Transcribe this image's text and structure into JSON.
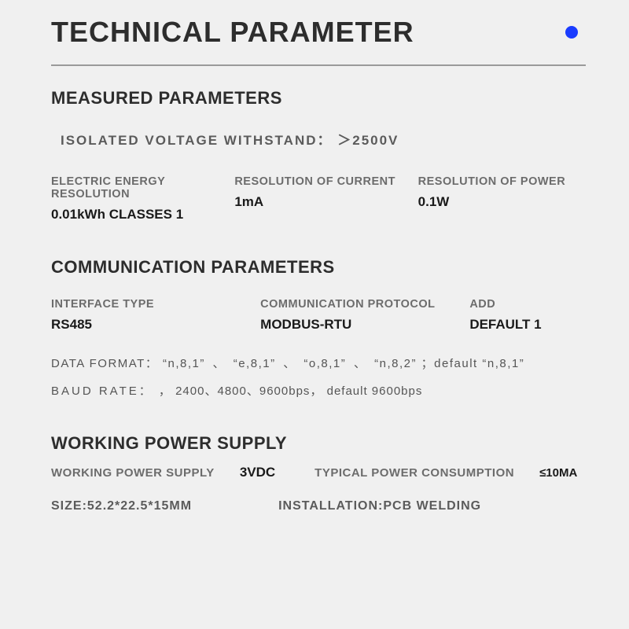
{
  "colors": {
    "background": "#f0f0f0",
    "text_primary": "#2d2d2d",
    "text_muted": "#6c6c6c",
    "text_dark": "#1a1a1a",
    "rule": "#9a9a9a",
    "accent_dot": "#1a3cff"
  },
  "title": "TECHNICAL PARAMETER",
  "section1": {
    "heading": "MEASURED PARAMETERS",
    "isolated_label": "ISOLATED VOLTAGE WITHSTAND：",
    "isolated_value": "＞2500V",
    "cols": [
      {
        "label": "ELECTRIC ENERGY RESOLUTION",
        "value": "0.01kWh CLASSES 1"
      },
      {
        "label": "RESOLUTION OF CURRENT",
        "value": "1mA"
      },
      {
        "label": "RESOLUTION OF POWER",
        "value": "0.1W"
      }
    ]
  },
  "section2": {
    "heading": "COMMUNICATION PARAMETERS",
    "cols": [
      {
        "label": "INTERFACE TYPE",
        "value": "RS485"
      },
      {
        "label": "COMMUNICATION PROTOCOL",
        "value": "MODBUS-RTU"
      },
      {
        "label": "ADD",
        "value": "DEFAULT 1"
      }
    ],
    "data_format": {
      "label": "DATA FORMAT：",
      "options": [
        "“n,8,1”",
        "“e,8,1”",
        "“o,8,1”",
        "“n,8,2”"
      ],
      "separator": "、",
      "default_text": "；default “n,8,1”"
    },
    "baud_rate": {
      "label": "BAUD RATE：",
      "leading": "，",
      "options": [
        "2400",
        "4800",
        "9600bps"
      ],
      "separator": "、",
      "default_text": "， default 9600bps"
    }
  },
  "section3": {
    "heading": "WORKING POWER SUPPLY",
    "row1": {
      "label1": "WORKING POWER SUPPLY",
      "value1": "3VDC",
      "label2": "TYPICAL POWER CONSUMPTION",
      "value2": "≤10MA"
    },
    "row2": {
      "size": "SIZE:52.2*22.5*15MM",
      "install": "INSTALLATION:PCB WELDING"
    }
  }
}
